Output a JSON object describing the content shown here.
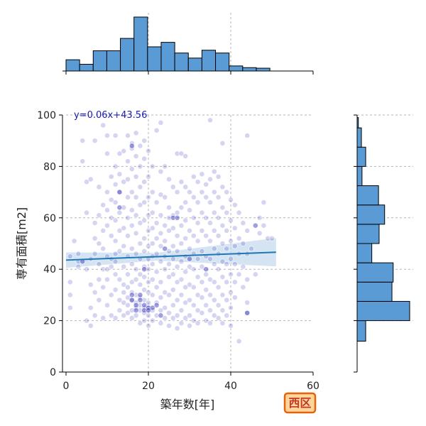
{
  "chart_data": {
    "type": "scatter",
    "xlabel": "築年数[年]",
    "ylabel": "専有面積[m2]",
    "xlim": [
      0,
      60
    ],
    "ylim": [
      0,
      100
    ],
    "xticks": [
      0,
      20,
      40,
      60
    ],
    "yticks": [
      0,
      20,
      40,
      60,
      80,
      100
    ],
    "grid": true,
    "regression": {
      "label": "y=0.06x+43.56",
      "slope": 0.06,
      "intercept": 43.56,
      "x_range": [
        0,
        51
      ],
      "color": "#1f77b4",
      "ci_color": "#c6dbef"
    },
    "point_color": "#2b2bb8",
    "bar_color": "#5b9bd5",
    "x_histogram": {
      "bin_edges": [
        0,
        3.3,
        6.6,
        9.9,
        13.2,
        16.5,
        19.8,
        23.1,
        26.4,
        29.7,
        33.0,
        36.3,
        39.6,
        42.9,
        46.2,
        49.5,
        52.8
      ],
      "counts": [
        20,
        12,
        36,
        36,
        58,
        96,
        43,
        51,
        32,
        23,
        37,
        32,
        9,
        6,
        5,
        0
      ]
    },
    "y_histogram": {
      "bin_edges": [
        12,
        20,
        27.5,
        35,
        42.5,
        50,
        57.5,
        65,
        72.5,
        80,
        87.5,
        95,
        99
      ],
      "counts": [
        14,
        86,
        57,
        59,
        24,
        36,
        45,
        35,
        8,
        14,
        7,
        2
      ]
    },
    "points": [
      [
        1,
        45
      ],
      [
        1,
        35
      ],
      [
        1,
        30
      ],
      [
        1,
        25
      ],
      [
        2,
        51
      ],
      [
        3,
        41
      ],
      [
        3,
        46
      ],
      [
        3,
        43
      ],
      [
        4,
        82
      ],
      [
        4,
        90
      ],
      [
        5,
        74
      ],
      [
        5,
        62
      ],
      [
        5,
        40
      ],
      [
        5,
        20
      ],
      [
        6,
        75
      ],
      [
        6,
        44
      ],
      [
        6,
        34
      ],
      [
        6,
        25
      ],
      [
        6,
        18
      ],
      [
        7,
        90
      ],
      [
        7,
        58
      ],
      [
        7,
        52
      ],
      [
        7,
        46
      ],
      [
        7,
        31
      ],
      [
        7,
        22
      ],
      [
        8,
        72
      ],
      [
        8,
        61
      ],
      [
        8,
        50
      ],
      [
        8,
        42
      ],
      [
        8,
        36
      ],
      [
        8,
        28
      ],
      [
        9,
        96
      ],
      [
        9,
        65
      ],
      [
        9,
        55
      ],
      [
        9,
        48
      ],
      [
        9,
        40
      ],
      [
        9,
        33
      ],
      [
        9,
        21
      ],
      [
        10,
        92
      ],
      [
        10,
        85
      ],
      [
        10,
        70
      ],
      [
        10,
        63
      ],
      [
        10,
        57
      ],
      [
        10,
        45
      ],
      [
        10,
        40
      ],
      [
        10,
        36
      ],
      [
        10,
        26
      ],
      [
        11,
        76
      ],
      [
        11,
        67
      ],
      [
        11,
        60
      ],
      [
        11,
        53
      ],
      [
        11,
        44
      ],
      [
        11,
        41
      ],
      [
        11,
        30
      ],
      [
        11,
        22
      ],
      [
        12,
        92
      ],
      [
        12,
        80
      ],
      [
        12,
        73
      ],
      [
        12,
        66
      ],
      [
        12,
        59
      ],
      [
        12,
        51
      ],
      [
        12,
        46
      ],
      [
        12,
        43
      ],
      [
        12,
        38
      ],
      [
        12,
        32
      ],
      [
        12,
        21
      ],
      [
        13,
        85
      ],
      [
        13,
        77
      ],
      [
        13,
        70
      ],
      [
        13,
        62
      ],
      [
        13,
        55
      ],
      [
        13,
        47
      ],
      [
        13,
        36
      ],
      [
        13,
        28
      ],
      [
        13,
        24
      ],
      [
        14,
        86
      ],
      [
        14,
        74
      ],
      [
        14,
        64
      ],
      [
        14,
        56
      ],
      [
        14,
        49
      ],
      [
        14,
        41
      ],
      [
        14,
        34
      ],
      [
        14,
        31
      ],
      [
        14,
        27
      ],
      [
        14,
        22
      ],
      [
        15,
        92
      ],
      [
        15,
        82
      ],
      [
        15,
        75
      ],
      [
        15,
        68
      ],
      [
        15,
        60
      ],
      [
        15,
        53
      ],
      [
        15,
        45
      ],
      [
        15,
        38
      ],
      [
        15,
        33
      ],
      [
        15,
        29
      ],
      [
        15,
        26
      ],
      [
        15,
        23
      ],
      [
        16,
        89
      ],
      [
        16,
        87
      ],
      [
        16,
        79
      ],
      [
        16,
        70
      ],
      [
        16,
        63
      ],
      [
        16,
        57
      ],
      [
        16,
        48
      ],
      [
        16,
        42
      ],
      [
        16,
        35
      ],
      [
        16,
        31
      ],
      [
        16,
        28
      ],
      [
        16,
        24
      ],
      [
        16,
        21
      ],
      [
        17,
        93
      ],
      [
        17,
        84
      ],
      [
        17,
        76
      ],
      [
        17,
        68
      ],
      [
        17,
        61
      ],
      [
        17,
        54
      ],
      [
        17,
        46
      ],
      [
        17,
        40
      ],
      [
        17,
        36
      ],
      [
        17,
        30
      ],
      [
        17,
        27
      ],
      [
        17,
        25
      ],
      [
        17,
        22
      ],
      [
        18,
        88
      ],
      [
        18,
        80
      ],
      [
        18,
        72
      ],
      [
        18,
        65
      ],
      [
        18,
        58
      ],
      [
        18,
        50
      ],
      [
        18,
        44
      ],
      [
        18,
        38
      ],
      [
        18,
        34
      ],
      [
        18,
        29
      ],
      [
        18,
        26
      ],
      [
        18,
        24
      ],
      [
        18,
        19
      ],
      [
        19,
        90
      ],
      [
        19,
        83
      ],
      [
        19,
        74
      ],
      [
        19,
        66
      ],
      [
        19,
        59
      ],
      [
        19,
        52
      ],
      [
        19,
        47
      ],
      [
        19,
        41
      ],
      [
        19,
        37
      ],
      [
        19,
        32
      ],
      [
        19,
        28
      ],
      [
        19,
        25
      ],
      [
        19,
        23
      ],
      [
        19,
        20
      ],
      [
        20,
        86
      ],
      [
        20,
        76
      ],
      [
        20,
        68
      ],
      [
        20,
        61
      ],
      [
        20,
        55
      ],
      [
        20,
        49
      ],
      [
        20,
        44
      ],
      [
        20,
        40
      ],
      [
        20,
        35
      ],
      [
        20,
        31
      ],
      [
        20,
        27
      ],
      [
        20,
        25
      ],
      [
        20,
        22
      ],
      [
        20,
        18
      ],
      [
        21,
        80
      ],
      [
        21,
        70
      ],
      [
        21,
        62
      ],
      [
        21,
        56
      ],
      [
        21,
        50
      ],
      [
        21,
        45
      ],
      [
        21,
        42
      ],
      [
        21,
        36
      ],
      [
        21,
        30
      ],
      [
        21,
        24
      ],
      [
        21,
        20
      ],
      [
        22,
        94
      ],
      [
        22,
        66
      ],
      [
        22,
        58
      ],
      [
        22,
        52
      ],
      [
        22,
        46
      ],
      [
        22,
        39
      ],
      [
        22,
        33
      ],
      [
        22,
        27
      ],
      [
        22,
        22
      ],
      [
        23,
        97
      ],
      [
        23,
        78
      ],
      [
        23,
        69
      ],
      [
        23,
        61
      ],
      [
        23,
        54
      ],
      [
        23,
        49
      ],
      [
        23,
        43
      ],
      [
        23,
        35
      ],
      [
        23,
        29
      ],
      [
        23,
        24
      ],
      [
        23,
        19
      ],
      [
        24,
        80
      ],
      [
        24,
        68
      ],
      [
        24,
        57
      ],
      [
        24,
        51
      ],
      [
        24,
        45
      ],
      [
        24,
        40
      ],
      [
        24,
        31
      ],
      [
        24,
        25
      ],
      [
        24,
        21
      ],
      [
        25,
        75
      ],
      [
        25,
        64
      ],
      [
        25,
        60
      ],
      [
        25,
        55
      ],
      [
        25,
        47
      ],
      [
        25,
        42
      ],
      [
        25,
        37
      ],
      [
        25,
        30
      ],
      [
        25,
        23
      ],
      [
        25,
        18
      ],
      [
        26,
        72
      ],
      [
        26,
        61
      ],
      [
        26,
        56
      ],
      [
        26,
        49
      ],
      [
        26,
        44
      ],
      [
        26,
        38
      ],
      [
        26,
        32
      ],
      [
        26,
        26
      ],
      [
        26,
        21
      ],
      [
        27,
        85
      ],
      [
        27,
        70
      ],
      [
        27,
        62
      ],
      [
        27,
        53
      ],
      [
        27,
        47
      ],
      [
        27,
        41
      ],
      [
        27,
        35
      ],
      [
        27,
        28
      ],
      [
        27,
        22
      ],
      [
        27,
        17
      ],
      [
        28,
        85
      ],
      [
        28,
        74
      ],
      [
        28,
        64
      ],
      [
        28,
        57
      ],
      [
        28,
        50
      ],
      [
        28,
        43
      ],
      [
        28,
        36
      ],
      [
        28,
        30
      ],
      [
        28,
        24
      ],
      [
        28,
        19
      ],
      [
        29,
        84
      ],
      [
        29,
        72
      ],
      [
        29,
        66
      ],
      [
        29,
        59
      ],
      [
        29,
        52
      ],
      [
        29,
        45
      ],
      [
        29,
        39
      ],
      [
        29,
        33
      ],
      [
        29,
        27
      ],
      [
        29,
        21
      ],
      [
        30,
        70
      ],
      [
        30,
        63
      ],
      [
        30,
        55
      ],
      [
        30,
        48
      ],
      [
        30,
        41
      ],
      [
        30,
        34
      ],
      [
        30,
        28
      ],
      [
        30,
        22
      ],
      [
        30,
        18
      ],
      [
        31,
        76
      ],
      [
        31,
        68
      ],
      [
        31,
        60
      ],
      [
        31,
        53
      ],
      [
        31,
        46
      ],
      [
        31,
        40
      ],
      [
        31,
        33
      ],
      [
        31,
        26
      ],
      [
        31,
        20
      ],
      [
        32,
        74
      ],
      [
        32,
        66
      ],
      [
        32,
        58
      ],
      [
        32,
        51
      ],
      [
        32,
        44
      ],
      [
        32,
        37
      ],
      [
        32,
        30
      ],
      [
        32,
        24
      ],
      [
        32,
        19
      ],
      [
        33,
        77
      ],
      [
        33,
        70
      ],
      [
        33,
        62
      ],
      [
        33,
        55
      ],
      [
        33,
        47
      ],
      [
        33,
        41
      ],
      [
        33,
        35
      ],
      [
        33,
        29
      ],
      [
        33,
        23
      ],
      [
        34,
        73
      ],
      [
        34,
        68
      ],
      [
        34,
        60
      ],
      [
        34,
        53
      ],
      [
        34,
        45
      ],
      [
        34,
        38
      ],
      [
        34,
        32
      ],
      [
        34,
        26
      ],
      [
        34,
        20
      ],
      [
        35,
        98
      ],
      [
        35,
        75
      ],
      [
        35,
        66
      ],
      [
        35,
        58
      ],
      [
        35,
        51
      ],
      [
        35,
        44
      ],
      [
        35,
        36
      ],
      [
        35,
        30
      ],
      [
        35,
        24
      ],
      [
        35,
        19
      ],
      [
        36,
        78
      ],
      [
        36,
        70
      ],
      [
        36,
        62
      ],
      [
        36,
        55
      ],
      [
        36,
        48
      ],
      [
        36,
        42
      ],
      [
        36,
        35
      ],
      [
        36,
        28
      ],
      [
        36,
        22
      ],
      [
        37,
        76
      ],
      [
        37,
        68
      ],
      [
        37,
        60
      ],
      [
        37,
        53
      ],
      [
        37,
        46
      ],
      [
        37,
        40
      ],
      [
        37,
        33
      ],
      [
        37,
        26
      ],
      [
        37,
        21
      ],
      [
        38,
        89
      ],
      [
        38,
        72
      ],
      [
        38,
        64
      ],
      [
        38,
        57
      ],
      [
        38,
        50
      ],
      [
        38,
        43
      ],
      [
        38,
        37
      ],
      [
        38,
        30
      ],
      [
        38,
        24
      ],
      [
        38,
        19
      ],
      [
        39,
        70
      ],
      [
        39,
        62
      ],
      [
        39,
        55
      ],
      [
        39,
        48
      ],
      [
        39,
        42
      ],
      [
        39,
        35
      ],
      [
        39,
        28
      ],
      [
        39,
        22
      ],
      [
        40,
        67
      ],
      [
        40,
        59
      ],
      [
        40,
        51
      ],
      [
        40,
        44
      ],
      [
        40,
        38
      ],
      [
        40,
        31
      ],
      [
        40,
        25
      ],
      [
        40,
        18
      ],
      [
        41,
        65
      ],
      [
        41,
        56
      ],
      [
        41,
        49
      ],
      [
        41,
        42
      ],
      [
        41,
        35
      ],
      [
        41,
        29
      ],
      [
        42,
        62
      ],
      [
        42,
        52
      ],
      [
        42,
        46
      ],
      [
        42,
        38
      ],
      [
        42,
        12
      ],
      [
        43,
        58
      ],
      [
        43,
        50
      ],
      [
        43,
        41
      ],
      [
        43,
        33
      ],
      [
        44,
        92
      ],
      [
        44,
        55
      ],
      [
        44,
        46
      ],
      [
        44,
        36
      ],
      [
        44,
        27
      ],
      [
        44,
        23
      ],
      [
        45,
        48
      ],
      [
        46,
        38
      ],
      [
        47,
        60
      ],
      [
        47,
        54
      ],
      [
        48,
        57
      ],
      [
        48,
        66
      ],
      [
        49,
        52
      ],
      [
        50,
        52
      ]
    ],
    "dense_points": [
      [
        16,
        30
      ],
      [
        16,
        28
      ],
      [
        17,
        26
      ],
      [
        17,
        24
      ],
      [
        18,
        30
      ],
      [
        18,
        28
      ],
      [
        19,
        26
      ],
      [
        19,
        24
      ],
      [
        20,
        25
      ],
      [
        20,
        24
      ],
      [
        21,
        25
      ],
      [
        19,
        40
      ],
      [
        16,
        88
      ],
      [
        13,
        70
      ],
      [
        26,
        60
      ],
      [
        24,
        48
      ],
      [
        30,
        44
      ],
      [
        44,
        23
      ],
      [
        46,
        57
      ],
      [
        13,
        64
      ],
      [
        27,
        60
      ],
      [
        4,
        43
      ],
      [
        34,
        40
      ],
      [
        22,
        26
      ],
      [
        23,
        22
      ]
    ],
    "badge": "西区"
  }
}
